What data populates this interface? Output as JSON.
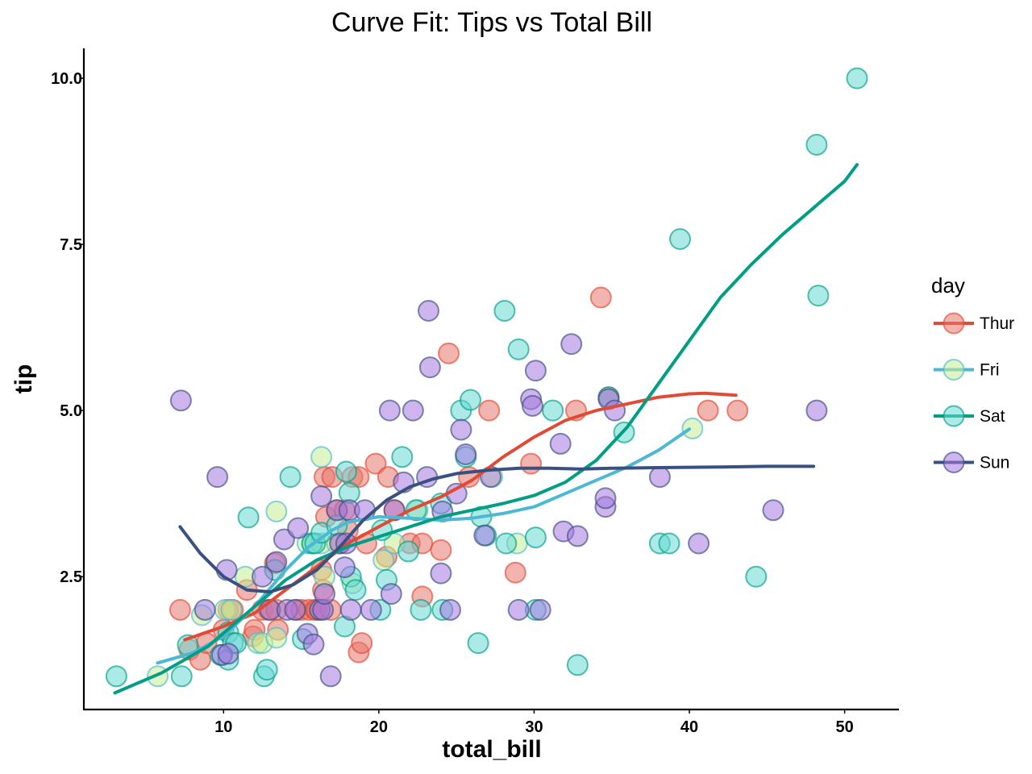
{
  "chart_data": {
    "type": "scatter",
    "title": "Curve Fit: Tips vs Total Bill",
    "xlabel": "total_bill",
    "ylabel": "tip",
    "xlim": [
      1,
      53.5
    ],
    "ylim": [
      0.5,
      10.45
    ],
    "xticks": [
      10,
      20,
      30,
      40,
      50
    ],
    "yticks": [
      2.5,
      5.0,
      7.5,
      10.0
    ],
    "xtick_labels": [
      "10",
      "20",
      "30",
      "40",
      "50"
    ],
    "ytick_labels": [
      "2.5",
      "5.0",
      "7.5",
      "10.0"
    ],
    "grid": false,
    "legend_title": "day",
    "legend_position": "right",
    "series": [
      {
        "name": "Thur",
        "line_color": "#e04b35",
        "point_color": "#e8776b",
        "points": [
          [
            7.2,
            2.0
          ],
          [
            7.8,
            1.4
          ],
          [
            8.5,
            1.25
          ],
          [
            8.9,
            1.5
          ],
          [
            10,
            1.7
          ],
          [
            10.3,
            2.0
          ],
          [
            10.6,
            2.0
          ],
          [
            11.5,
            2.3
          ],
          [
            11.9,
            1.6
          ],
          [
            12,
            1.7
          ],
          [
            12.5,
            2.0
          ],
          [
            12.9,
            2.0
          ],
          [
            13.3,
            2.7
          ],
          [
            13.4,
            2.0
          ],
          [
            13.5,
            1.7
          ],
          [
            14.7,
            2.0
          ],
          [
            15,
            2.0
          ],
          [
            15.5,
            2.0
          ],
          [
            15.9,
            2.0
          ],
          [
            16,
            2.0
          ],
          [
            16.3,
            2.6
          ],
          [
            16.4,
            2.3
          ],
          [
            16.5,
            4.0
          ],
          [
            16.6,
            3.4
          ],
          [
            16.9,
            2.0
          ],
          [
            17,
            4.0
          ],
          [
            17.3,
            3.5
          ],
          [
            17.5,
            3.0
          ],
          [
            17.8,
            3.5
          ],
          [
            18,
            3.2
          ],
          [
            18.3,
            4.0
          ],
          [
            18.7,
            4.0
          ],
          [
            18.7,
            1.36
          ],
          [
            18.9,
            1.5
          ],
          [
            19.2,
            3.0
          ],
          [
            19.8,
            4.2
          ],
          [
            20.5,
            2.8
          ],
          [
            20.6,
            4.0
          ],
          [
            21,
            3.5
          ],
          [
            22,
            3.0
          ],
          [
            22.8,
            2.2
          ],
          [
            22.8,
            3.0
          ],
          [
            24,
            2.9
          ],
          [
            24.5,
            5.86
          ],
          [
            25.8,
            4.0
          ],
          [
            27.1,
            5.0
          ],
          [
            28.8,
            2.56
          ],
          [
            29.8,
            4.2
          ],
          [
            32.7,
            5.0
          ],
          [
            34.3,
            6.7
          ],
          [
            34.8,
            5.2
          ],
          [
            41.2,
            5.0
          ],
          [
            43.1,
            5.0
          ]
        ],
        "curve": [
          [
            7.5,
            1.55
          ],
          [
            10,
            1.75
          ],
          [
            12,
            1.95
          ],
          [
            14,
            2.3
          ],
          [
            16,
            2.65
          ],
          [
            18,
            3.0
          ],
          [
            20,
            3.25
          ],
          [
            22,
            3.5
          ],
          [
            24,
            3.7
          ],
          [
            26,
            3.95
          ],
          [
            28,
            4.3
          ],
          [
            30,
            4.6
          ],
          [
            32,
            4.85
          ],
          [
            34,
            5.0
          ],
          [
            36,
            5.1
          ],
          [
            38,
            5.2
          ],
          [
            40,
            5.25
          ],
          [
            41,
            5.26
          ],
          [
            43,
            5.23
          ]
        ]
      },
      {
        "name": "Fri",
        "line_color": "#4db8d4",
        "point_color": "#c6ec94",
        "points": [
          [
            5.75,
            1.0
          ],
          [
            8.6,
            1.92
          ],
          [
            10.1,
            2.0
          ],
          [
            10.5,
            2.0
          ],
          [
            11.4,
            2.5
          ],
          [
            12.2,
            1.5
          ],
          [
            12.5,
            1.5
          ],
          [
            13.4,
            3.48
          ],
          [
            13.4,
            1.58
          ],
          [
            15.4,
            3.0
          ],
          [
            15.7,
            3.0
          ],
          [
            16.3,
            4.3
          ],
          [
            16.3,
            3.0
          ],
          [
            16.5,
            2.5
          ],
          [
            17.3,
            3.0
          ],
          [
            18.3,
            2.4
          ],
          [
            20.3,
            2.75
          ],
          [
            21.0,
            3.0
          ],
          [
            22.5,
            3.5
          ],
          [
            27.3,
            4.0
          ],
          [
            28.9,
            3.0
          ],
          [
            40.2,
            4.73
          ]
        ],
        "curve": [
          [
            5.75,
            1.2
          ],
          [
            8,
            1.35
          ],
          [
            10,
            1.6
          ],
          [
            12,
            2.05
          ],
          [
            14,
            2.6
          ],
          [
            15.5,
            2.95
          ],
          [
            17,
            3.2
          ],
          [
            18,
            3.32
          ],
          [
            20,
            3.4
          ],
          [
            22,
            3.38
          ],
          [
            24,
            3.35
          ],
          [
            26,
            3.38
          ],
          [
            28,
            3.45
          ],
          [
            30,
            3.55
          ],
          [
            32,
            3.75
          ],
          [
            34,
            3.95
          ],
          [
            36,
            4.15
          ],
          [
            38,
            4.4
          ],
          [
            40,
            4.72
          ]
        ]
      },
      {
        "name": "Sat",
        "line_color": "#009e84",
        "point_color": "#68d8d6",
        "points": [
          [
            3.1,
            1.0
          ],
          [
            7.3,
            1.0
          ],
          [
            7.7,
            1.47
          ],
          [
            9.8,
            1.32
          ],
          [
            10.3,
            1.66
          ],
          [
            10.3,
            1.25
          ],
          [
            10.6,
            1.5
          ],
          [
            10.8,
            1.5
          ],
          [
            11.6,
            3.39
          ],
          [
            12.6,
            1.0
          ],
          [
            12.8,
            1.1
          ],
          [
            13.3,
            2.6
          ],
          [
            14.3,
            4.0
          ],
          [
            15.1,
            1.56
          ],
          [
            15.7,
            3.0
          ],
          [
            15.9,
            3.0
          ],
          [
            16.3,
            3.16
          ],
          [
            17.3,
            3.27
          ],
          [
            17.8,
            1.75
          ],
          [
            17.9,
            4.08
          ],
          [
            18.1,
            3.76
          ],
          [
            18.2,
            2.5
          ],
          [
            18.5,
            2.3
          ],
          [
            20.1,
            2.0
          ],
          [
            20.2,
            3.2
          ],
          [
            20.5,
            2.45
          ],
          [
            21.5,
            4.3
          ],
          [
            21.9,
            2.88
          ],
          [
            22.4,
            3.5
          ],
          [
            22.7,
            2.0
          ],
          [
            24,
            3.6
          ],
          [
            24.1,
            2.0
          ],
          [
            25.3,
            5.0
          ],
          [
            25.6,
            4.3
          ],
          [
            25.9,
            5.16
          ],
          [
            26.4,
            1.5
          ],
          [
            26.6,
            3.4
          ],
          [
            26.9,
            3.12
          ],
          [
            28.1,
            6.5
          ],
          [
            28.2,
            3.0
          ],
          [
            29,
            5.92
          ],
          [
            30.1,
            2.0
          ],
          [
            30.1,
            3.09
          ],
          [
            31.2,
            5.0
          ],
          [
            32.8,
            1.17
          ],
          [
            34.8,
            5.2
          ],
          [
            35.8,
            4.67
          ],
          [
            38.1,
            3.0
          ],
          [
            38.7,
            3.0
          ],
          [
            39.4,
            7.58
          ],
          [
            44.3,
            2.5
          ],
          [
            48.2,
            9.0
          ],
          [
            48.3,
            6.73
          ],
          [
            50.8,
            10.0
          ]
        ],
        "curve": [
          [
            3,
            0.75
          ],
          [
            6,
            1.05
          ],
          [
            9,
            1.45
          ],
          [
            12,
            2.05
          ],
          [
            14,
            2.45
          ],
          [
            16,
            2.75
          ],
          [
            18,
            2.95
          ],
          [
            20,
            3.1
          ],
          [
            22,
            3.25
          ],
          [
            24,
            3.4
          ],
          [
            26,
            3.5
          ],
          [
            28,
            3.6
          ],
          [
            30,
            3.72
          ],
          [
            32,
            3.92
          ],
          [
            34,
            4.25
          ],
          [
            36,
            4.75
          ],
          [
            38,
            5.4
          ],
          [
            40,
            6.05
          ],
          [
            42,
            6.7
          ],
          [
            44,
            7.2
          ],
          [
            46,
            7.65
          ],
          [
            48,
            8.05
          ],
          [
            50,
            8.45
          ],
          [
            50.8,
            8.7
          ]
        ]
      },
      {
        "name": "Sun",
        "line_color": "#3a5080",
        "point_color": "#a578e0",
        "points": [
          [
            7.25,
            5.15
          ],
          [
            8.8,
            2.0
          ],
          [
            9.6,
            4.0
          ],
          [
            9.9,
            1.32
          ],
          [
            10.2,
            2.6
          ],
          [
            10.3,
            1.34
          ],
          [
            12.5,
            2.5
          ],
          [
            13.0,
            2.0
          ],
          [
            13.4,
            2.72
          ],
          [
            13.9,
            3.06
          ],
          [
            14.1,
            2.0
          ],
          [
            14.6,
            2.0
          ],
          [
            14.8,
            3.23
          ],
          [
            15.4,
            1.64
          ],
          [
            15.8,
            1.48
          ],
          [
            16.2,
            2.0
          ],
          [
            16.3,
            3.71
          ],
          [
            16.4,
            2.0
          ],
          [
            16.5,
            2.24
          ],
          [
            16.9,
            1.0
          ],
          [
            17.3,
            3.5
          ],
          [
            17.5,
            3.0
          ],
          [
            17.8,
            2.64
          ],
          [
            17.9,
            3.0
          ],
          [
            18.1,
            3.5
          ],
          [
            18.2,
            2.0
          ],
          [
            19.1,
            3.5
          ],
          [
            19.5,
            2.0
          ],
          [
            20.7,
            5.0
          ],
          [
            20.8,
            2.24
          ],
          [
            21,
            3.5
          ],
          [
            21.6,
            3.92
          ],
          [
            22.2,
            5.0
          ],
          [
            23.1,
            4.0
          ],
          [
            23.2,
            6.5
          ],
          [
            23.3,
            5.65
          ],
          [
            24.0,
            2.55
          ],
          [
            24.1,
            3.48
          ],
          [
            24.6,
            2.0
          ],
          [
            25.0,
            3.75
          ],
          [
            25.3,
            4.71
          ],
          [
            25.6,
            4.34
          ],
          [
            26.8,
            3.12
          ],
          [
            27.2,
            4.0
          ],
          [
            29.0,
            2.0
          ],
          [
            29.8,
            5.17
          ],
          [
            29.9,
            5.07
          ],
          [
            30.1,
            5.6
          ],
          [
            30.4,
            2.0
          ],
          [
            31.7,
            4.5
          ],
          [
            31.9,
            3.18
          ],
          [
            32.4,
            6.0
          ],
          [
            32.8,
            3.11
          ],
          [
            34.6,
            3.55
          ],
          [
            34.6,
            3.68
          ],
          [
            34.8,
            5.17
          ],
          [
            35.2,
            5.0
          ],
          [
            38.1,
            4.0
          ],
          [
            40.6,
            3.0
          ],
          [
            45.4,
            3.5
          ],
          [
            48.2,
            5.0
          ]
        ],
        "curve": [
          [
            7.2,
            3.25
          ],
          [
            8.5,
            2.85
          ],
          [
            10,
            2.5
          ],
          [
            11.5,
            2.3
          ],
          [
            13,
            2.27
          ],
          [
            14.5,
            2.38
          ],
          [
            16,
            2.6
          ],
          [
            17.5,
            2.95
          ],
          [
            19,
            3.35
          ],
          [
            20.5,
            3.65
          ],
          [
            22,
            3.85
          ],
          [
            23.5,
            3.97
          ],
          [
            25,
            4.05
          ],
          [
            27,
            4.1
          ],
          [
            29,
            4.13
          ],
          [
            31,
            4.13
          ],
          [
            33,
            4.12
          ],
          [
            35,
            4.13
          ],
          [
            38,
            4.14
          ],
          [
            42,
            4.15
          ],
          [
            45,
            4.16
          ],
          [
            48,
            4.16
          ]
        ]
      }
    ]
  }
}
